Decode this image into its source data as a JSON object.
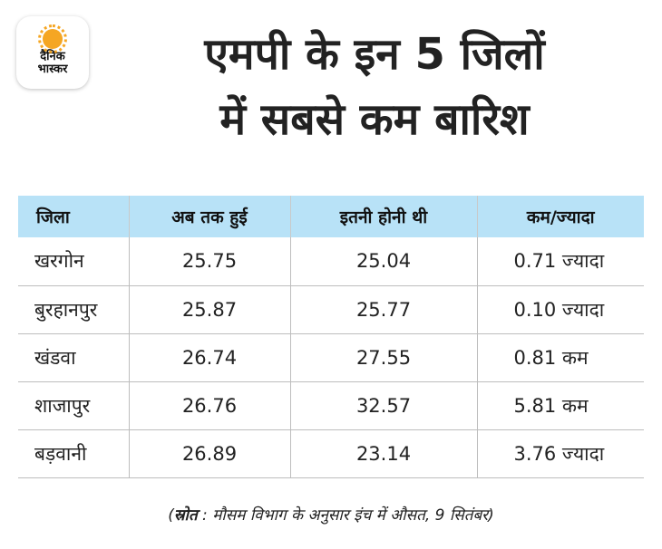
{
  "logo": {
    "line1": "दैनिक",
    "line2": "भास्कर"
  },
  "title": {
    "line1": "एमपी के इन 5 जिलों",
    "line2": "में सबसे कम बारिश"
  },
  "table": {
    "headers": [
      "जिला",
      "अब तक हुई",
      "इतनी होनी थी",
      "कम/ज्यादा"
    ],
    "rows": [
      [
        "खरगोन",
        "25.75",
        "25.04",
        "0.71 ज्यादा"
      ],
      [
        "बुरहानपुर",
        "25.87",
        "25.77",
        "0.10 ज्यादा"
      ],
      [
        "खंडवा",
        "26.74",
        "27.55",
        "0.81 कम"
      ],
      [
        "शाजापुर",
        "26.76",
        "32.57",
        "5.81 कम"
      ],
      [
        "बड़वानी",
        "26.89",
        "23.14",
        "3.76 ज्यादा"
      ]
    ]
  },
  "source": {
    "open": "(",
    "label": "स्रोत",
    "text": " : मौसम विभाग के अनुसार इंच में औसत, 9 सितंबर)"
  },
  "colors": {
    "header_bg": "#b8e2f7",
    "logo_accent": "#f5a623"
  }
}
